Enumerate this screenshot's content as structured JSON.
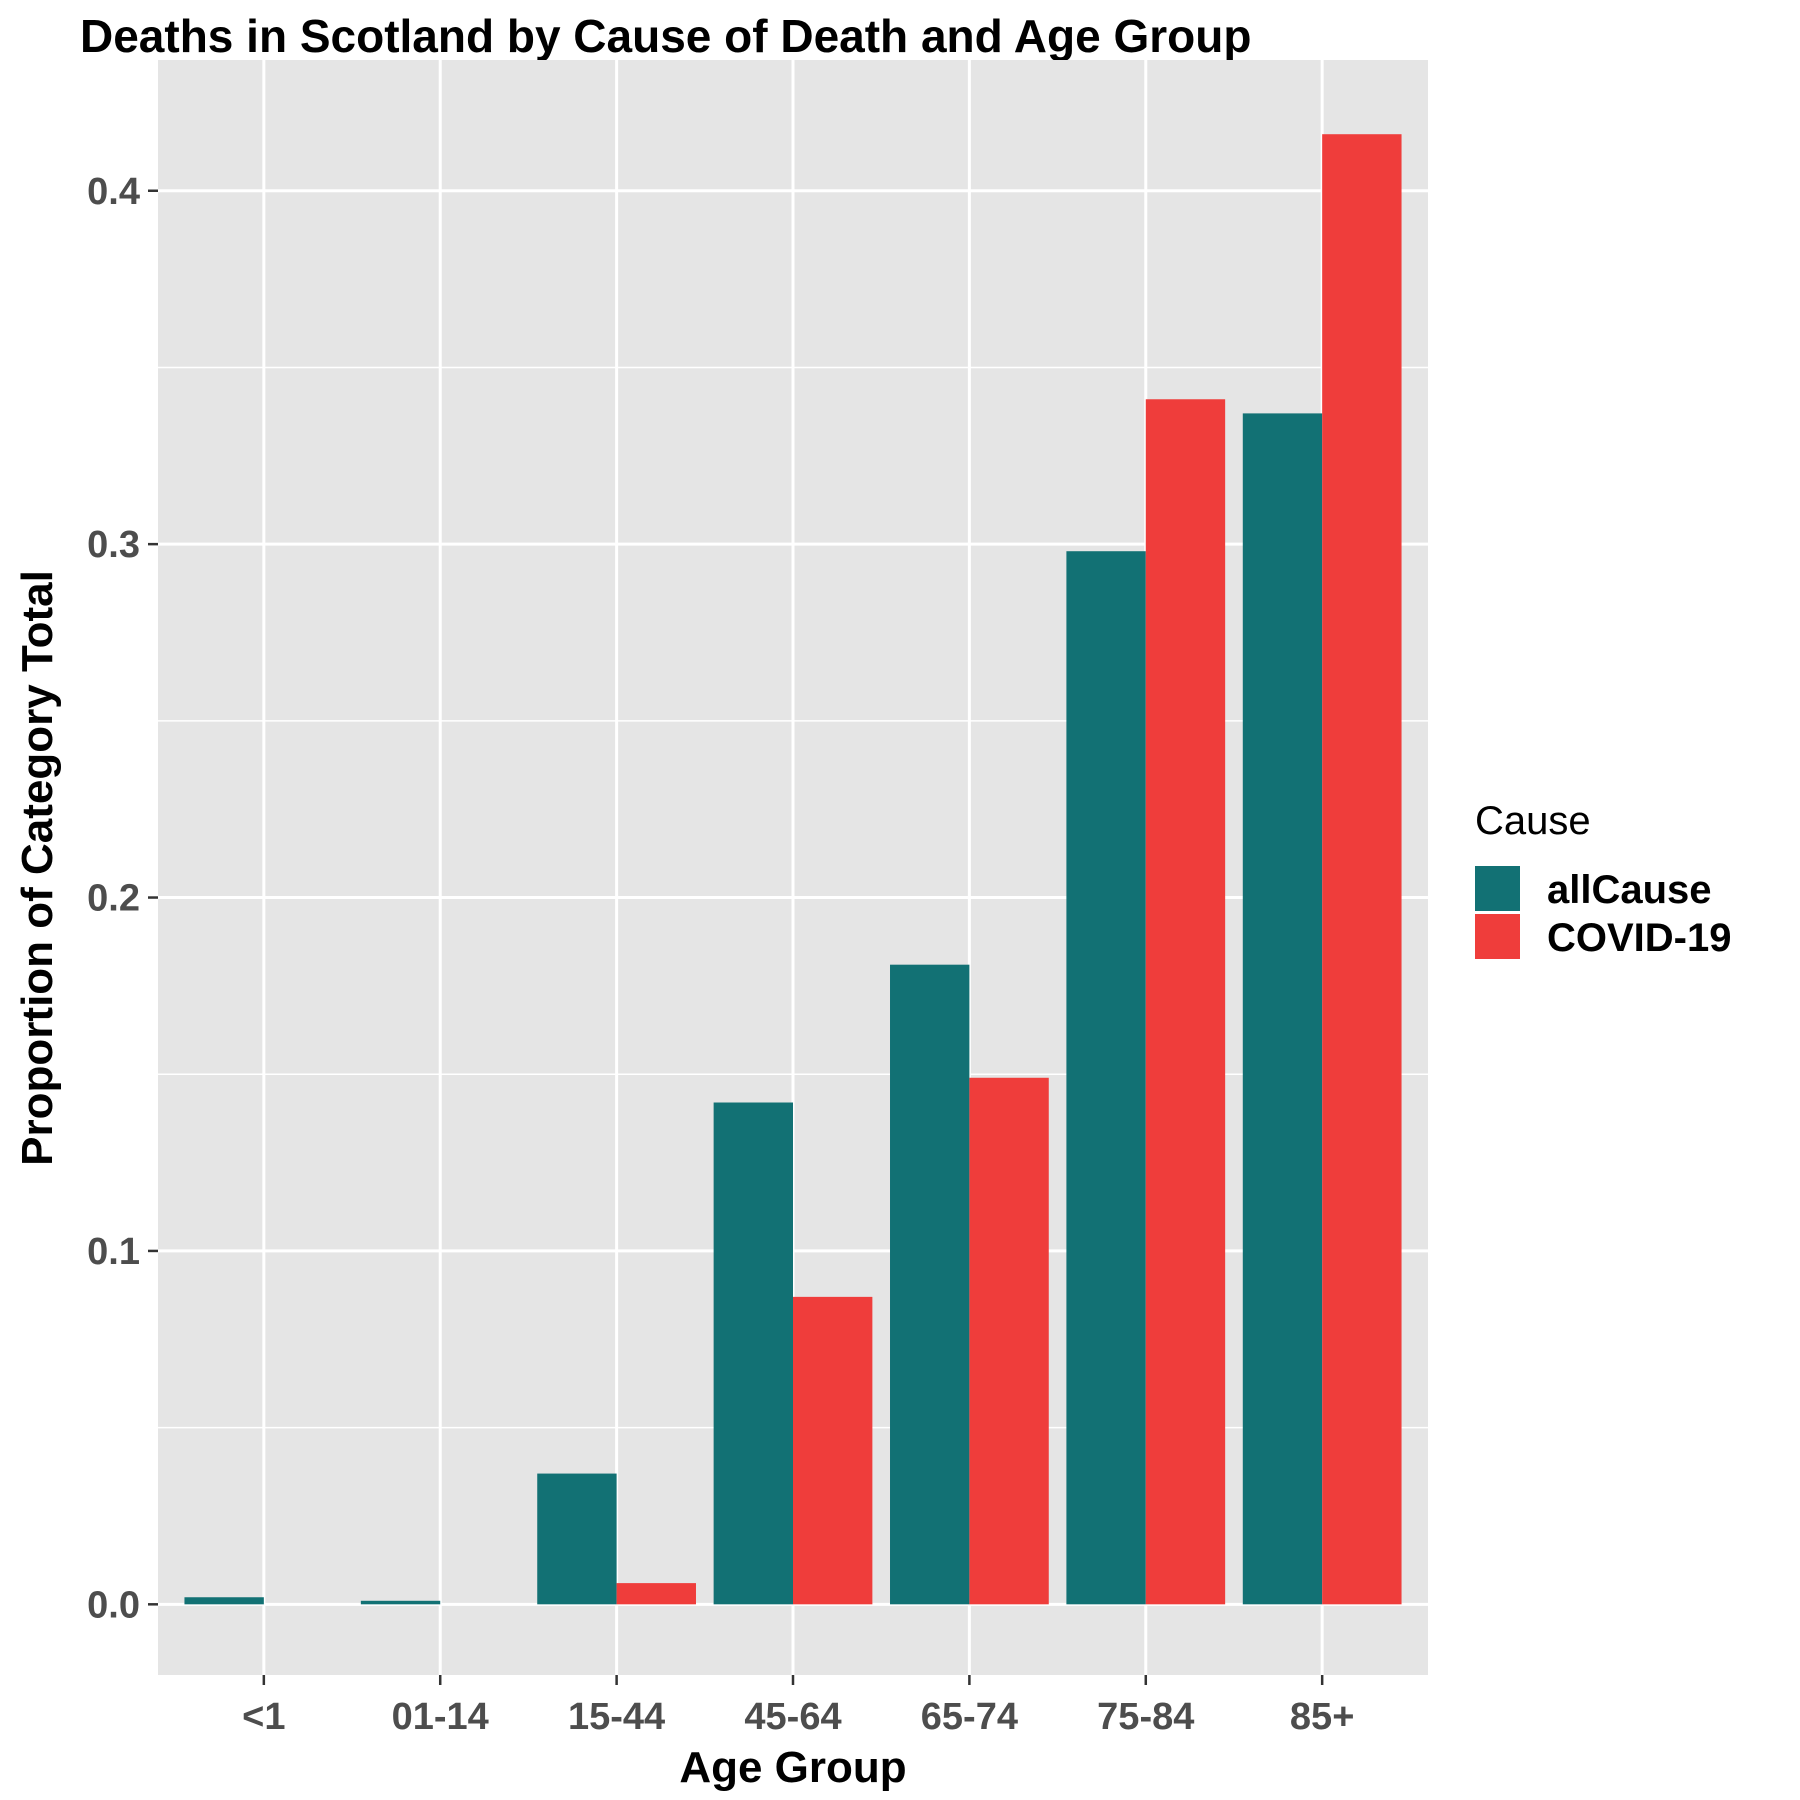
{
  "chart_data": {
    "type": "bar",
    "title": "Deaths in Scotland by Cause of Death and Age Group",
    "xlabel": "Age Group",
    "ylabel": "Proportion of Category Total",
    "categories": [
      "<1",
      "01-14",
      "15-44",
      "45-64",
      "65-74",
      "75-84",
      "85+"
    ],
    "series": [
      {
        "name": "allCause",
        "color": "#127174",
        "values": [
          0.002,
          0.001,
          0.037,
          0.142,
          0.181,
          0.298,
          0.337
        ]
      },
      {
        "name": "COVID-19",
        "color": "#EF3D3B",
        "values": [
          0.0,
          0.0,
          0.006,
          0.087,
          0.149,
          0.341,
          0.416
        ]
      }
    ],
    "ylim": [
      -0.02,
      0.437
    ],
    "yticks": [
      0.0,
      0.1,
      0.2,
      0.3,
      0.4
    ],
    "ytick_labels": [
      "0.0",
      "0.1",
      "0.2",
      "0.3",
      "0.4"
    ],
    "grid": true,
    "legend": {
      "title": "Cause",
      "position": "right"
    },
    "background": "#E5E5E5"
  }
}
